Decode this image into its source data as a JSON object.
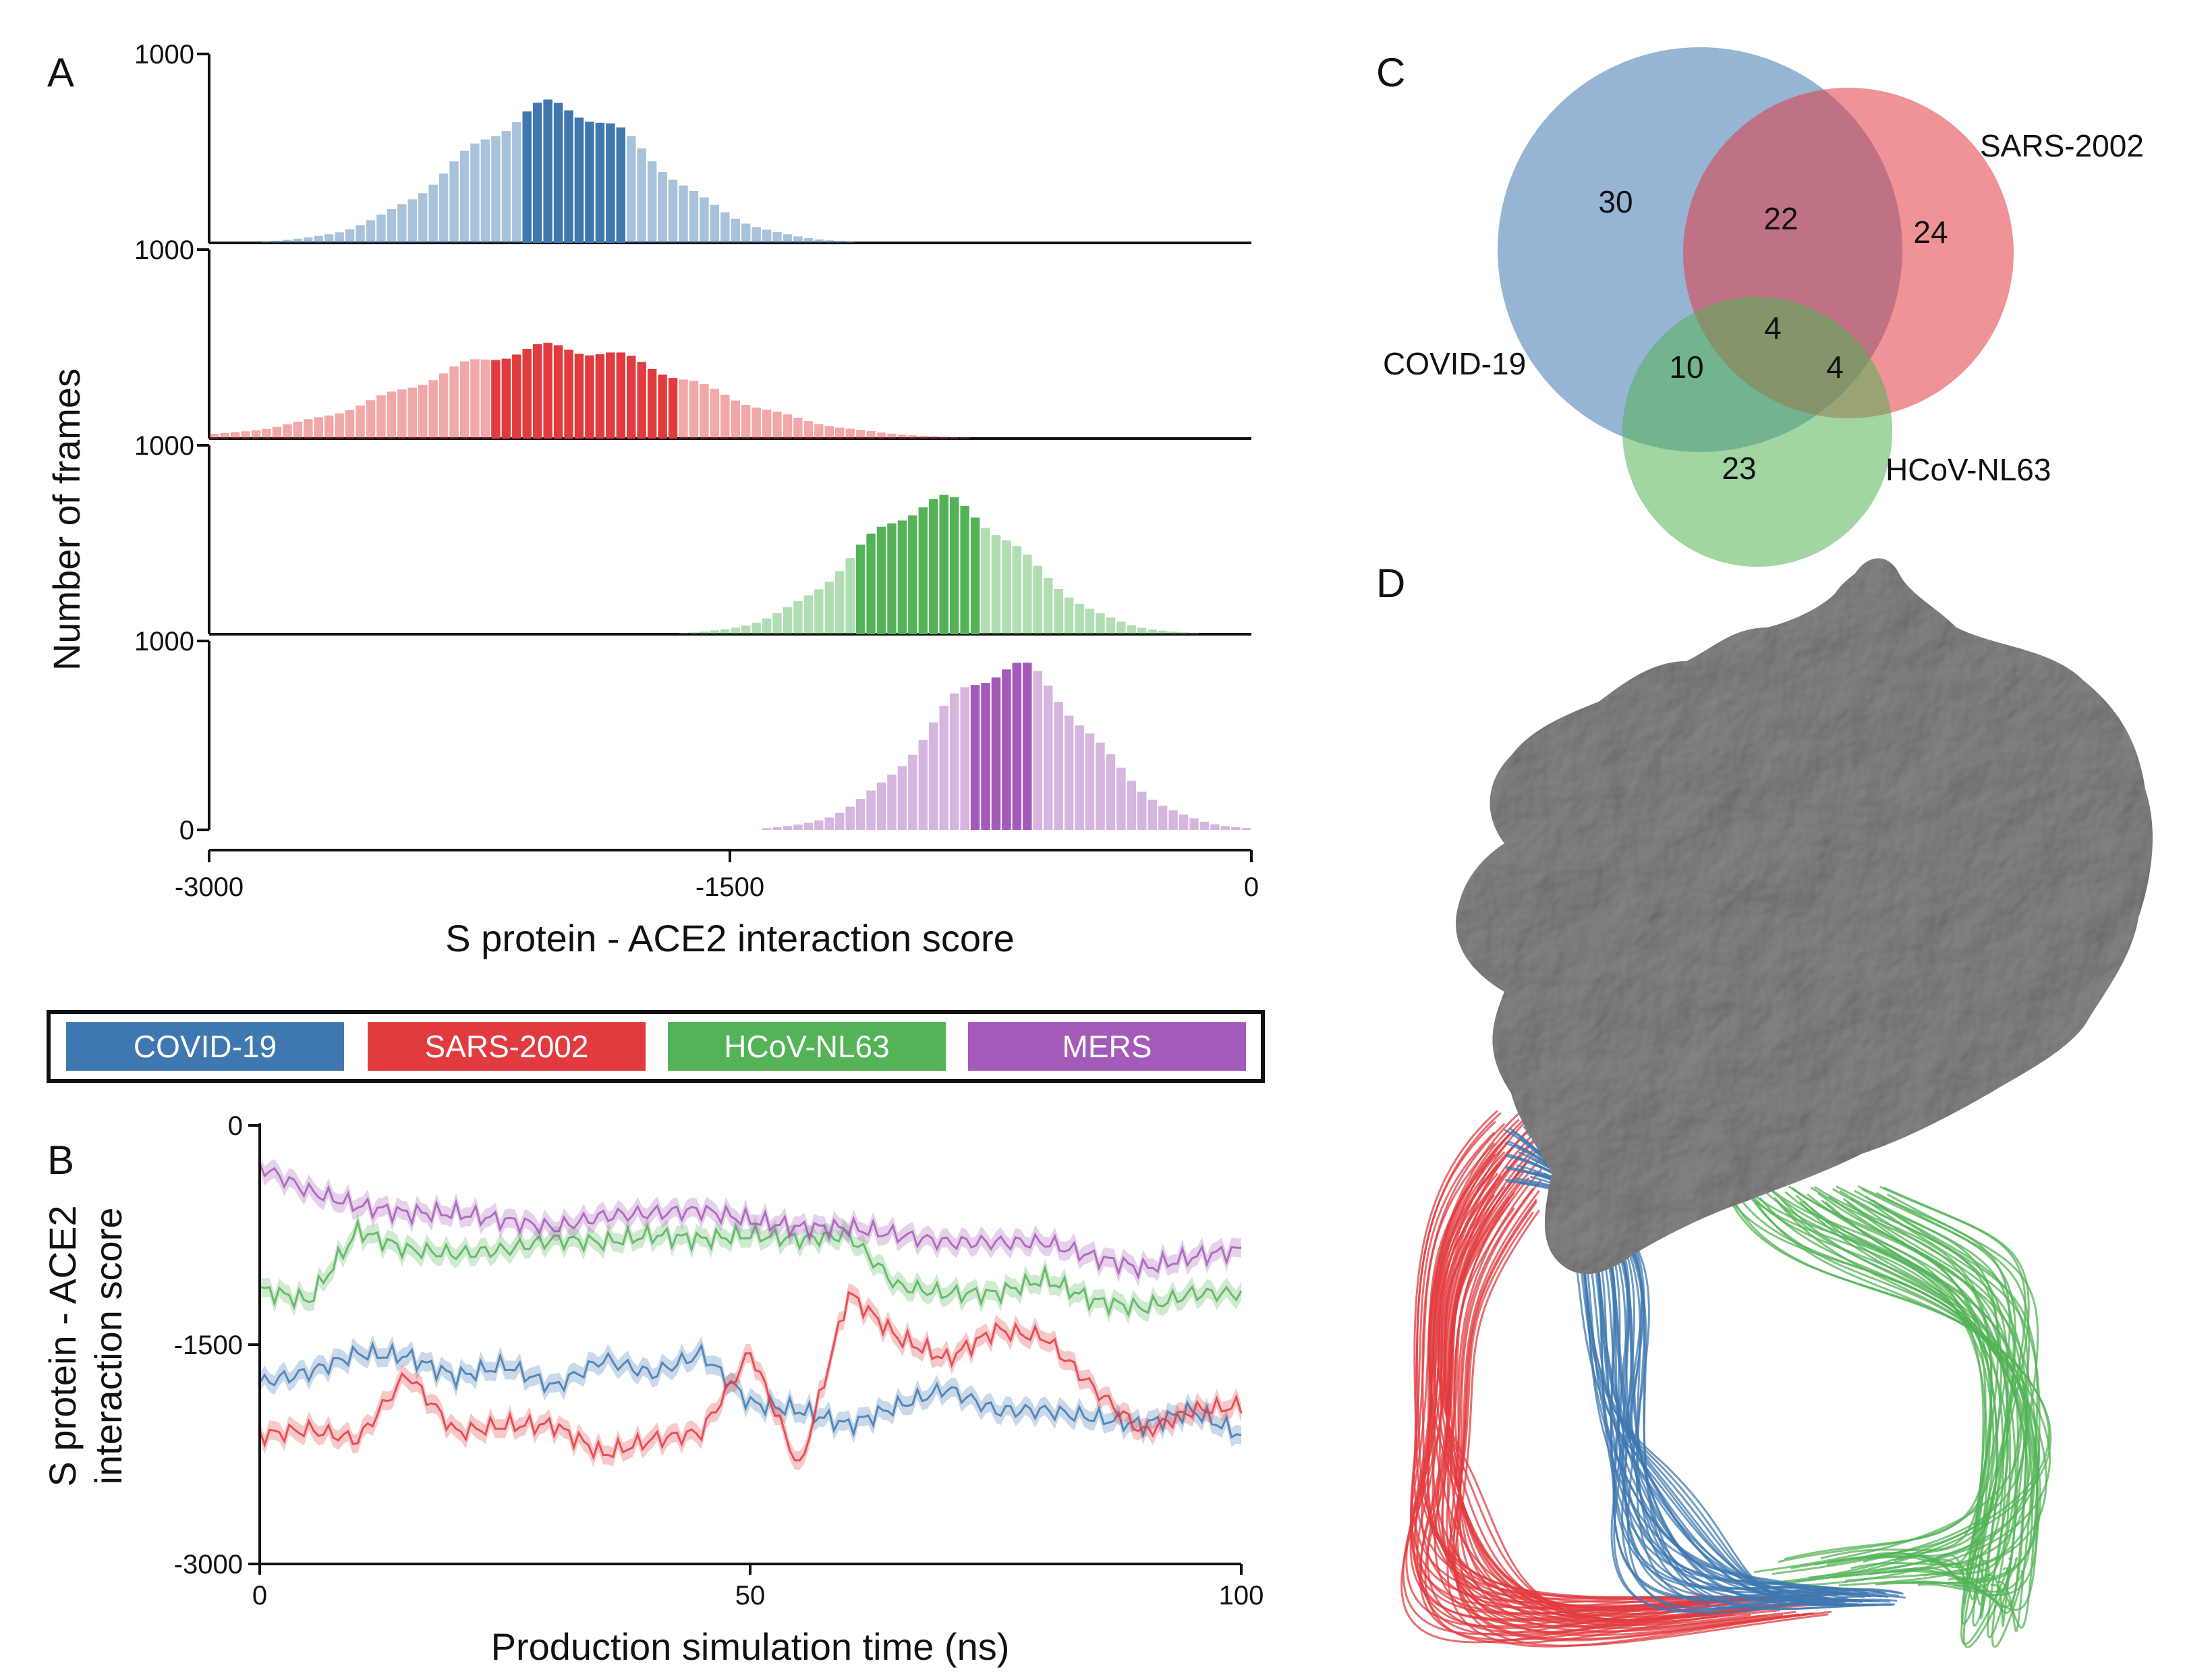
{
  "colors": {
    "covid": "#3f78b0",
    "sars": "#e23b3f",
    "nl63": "#53b356",
    "mers": "#a45ab8",
    "protein": "#7a7a7a"
  },
  "panel_labels": {
    "a": "A",
    "b": "B",
    "c": "C",
    "d": "D"
  },
  "legend": {
    "items": [
      {
        "key": "covid",
        "label": "COVID-19"
      },
      {
        "key": "sars",
        "label": "SARS-2002"
      },
      {
        "key": "nl63",
        "label": "HCoV-NL63"
      },
      {
        "key": "mers",
        "label": "MERS"
      }
    ]
  },
  "chart_data": [
    {
      "panel": "A",
      "type": "bar",
      "subtype": "stacked histograms",
      "xlabel": "S protein - ACE2 interaction score",
      "ylabel": "Number of frames",
      "xlim": [
        -3000,
        0
      ],
      "x_ticks": [
        "-3000",
        "-1500",
        "0"
      ],
      "ylim": [
        0,
        1000
      ],
      "y_tick_top": "1000",
      "y_tick_bottom": "0",
      "series": [
        {
          "name": "COVID-19",
          "key": "covid",
          "mean": -2000,
          "sd": 280,
          "peak": 720,
          "hi_range": [
            -2100,
            -1800
          ]
        },
        {
          "name": "SARS-2002",
          "key": "sars",
          "mean": -2000,
          "sd": 400,
          "peak": 480,
          "hi_range": [
            -2200,
            -1650
          ]
        },
        {
          "name": "HCoV-NL63",
          "key": "nl63",
          "mean": -900,
          "sd": 240,
          "peak": 700,
          "hi_range": [
            -1150,
            -780
          ]
        },
        {
          "name": "MERS",
          "key": "mers",
          "mean": -700,
          "sd": 230,
          "peak": 860,
          "hi_range": [
            -800,
            -630
          ]
        }
      ]
    },
    {
      "panel": "B",
      "type": "line",
      "xlabel": "Production simulation time (ns)",
      "ylabel_line1": "S protein - ACE2",
      "ylabel_line2": "interaction score",
      "xlim": [
        0,
        100
      ],
      "x_ticks": [
        "0",
        "50",
        "100"
      ],
      "ylim": [
        -3000,
        0
      ],
      "y_ticks": [
        "0",
        "-1500",
        "-3000"
      ],
      "x": [
        0,
        5,
        10,
        15,
        20,
        25,
        30,
        35,
        40,
        45,
        50,
        55,
        60,
        65,
        70,
        75,
        80,
        85,
        90,
        95,
        100
      ],
      "series": [
        {
          "name": "COVID-19",
          "key": "covid",
          "values": [
            -1760,
            -1690,
            -1560,
            -1580,
            -1720,
            -1640,
            -1790,
            -1600,
            -1700,
            -1560,
            -1900,
            -1950,
            -2050,
            -1920,
            -1800,
            -1950,
            -1950,
            -2000,
            -2050,
            -1950,
            -2120
          ]
        },
        {
          "name": "SARS-2002",
          "key": "sars",
          "values": [
            -2120,
            -2080,
            -2150,
            -1700,
            -2100,
            -2050,
            -2050,
            -2250,
            -2150,
            -2100,
            -1550,
            -2350,
            -1150,
            -1450,
            -1600,
            -1400,
            -1450,
            -1800,
            -2100,
            -1950,
            -1920
          ]
        },
        {
          "name": "HCoV-NL63",
          "key": "nl63",
          "values": [
            -1120,
            -1200,
            -720,
            -850,
            -880,
            -850,
            -780,
            -800,
            -750,
            -780,
            -750,
            -780,
            -750,
            -1100,
            -1150,
            -1150,
            -1050,
            -1200,
            -1250,
            -1150,
            -1150
          ]
        },
        {
          "name": "MERS",
          "key": "mers",
          "values": [
            -280,
            -450,
            -550,
            -600,
            -600,
            -650,
            -700,
            -620,
            -600,
            -580,
            -650,
            -700,
            -700,
            -750,
            -800,
            -800,
            -800,
            -900,
            -980,
            -900,
            -850
          ]
        }
      ]
    },
    {
      "panel": "C",
      "type": "venn",
      "sets": [
        {
          "key": "covid",
          "label": "COVID-19"
        },
        {
          "key": "sars",
          "label": "SARS-2002"
        },
        {
          "key": "nl63",
          "label": "HCoV-NL63"
        }
      ],
      "regions": {
        "covid_only": "30",
        "sars_only": "24",
        "nl63_only": "23",
        "covid_sars": "22",
        "covid_nl63": "10",
        "sars_nl63": "4",
        "all_three": "4"
      }
    }
  ]
}
